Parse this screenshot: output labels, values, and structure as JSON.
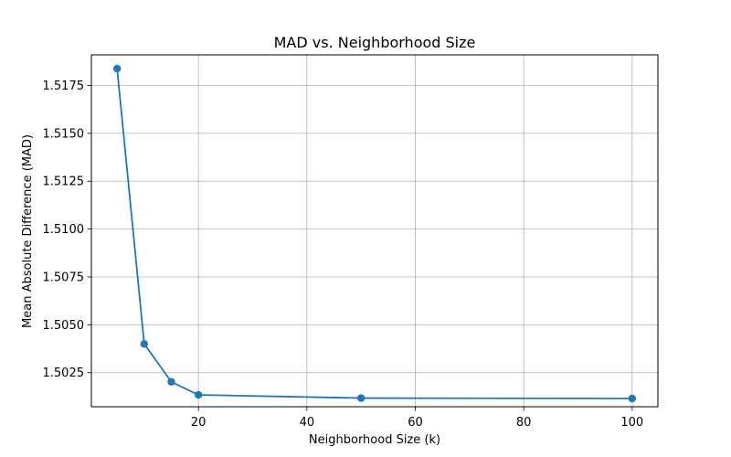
{
  "chart_data": {
    "type": "line",
    "title": "MAD vs. Neighborhood Size",
    "xlabel": "Neighborhood Size (k)",
    "ylabel": "Mean Absolute Difference (MAD)",
    "series": [
      {
        "x": [
          5,
          10,
          15,
          20,
          50,
          100
        ],
        "values": [
          1.51838,
          1.504,
          1.50202,
          1.50134,
          1.50117,
          1.50115
        ],
        "color": "#1f77b4",
        "marker": "circle"
      }
    ],
    "xlim": [
      0.25,
      104.75
    ],
    "ylim": [
      1.50072,
      1.5191
    ],
    "xticks": [
      20,
      40,
      60,
      80,
      100
    ],
    "xtick_labels": [
      "20",
      "40",
      "60",
      "80",
      "100"
    ],
    "yticks": [
      1.5025,
      1.505,
      1.5075,
      1.51,
      1.5125,
      1.515,
      1.5175
    ],
    "ytick_labels": [
      "1.5025",
      "1.5050",
      "1.5075",
      "1.5100",
      "1.5125",
      "1.5150",
      "1.5175"
    ],
    "grid": true,
    "legend": false
  }
}
